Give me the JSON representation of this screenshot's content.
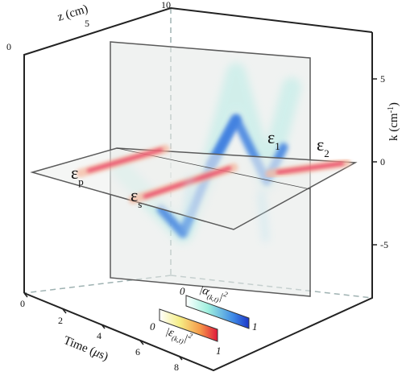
{
  "axes": {
    "z": {
      "label": "z (cm)",
      "ticks": [
        "0",
        "5",
        "10"
      ]
    },
    "k": {
      "label": "k (cm",
      "label_sup": "-1",
      "label_close": ")",
      "ticks": [
        "5",
        "0",
        "-5"
      ]
    },
    "time": {
      "label_main": "Time (",
      "label_mu": "μ",
      "label_s": "s)",
      "ticks": [
        "0",
        "2",
        "4",
        "6",
        "8"
      ]
    }
  },
  "labels": {
    "ep": {
      "main": "ε",
      "sub": "p"
    },
    "es": {
      "main": "ε",
      "sub": "s"
    },
    "e1": {
      "main": "ε",
      "sub": "1"
    },
    "e2": {
      "main": "ε",
      "sub": "2"
    }
  },
  "colorbars": [
    {
      "name": "alpha",
      "min": "0",
      "max": "1",
      "symbol": "α",
      "sub": "(k,t)",
      "power": "2",
      "colors": [
        "#ffffff",
        "#9ff0de",
        "#3f8ae6",
        "#1c36c8"
      ]
    },
    {
      "name": "epsilon",
      "min": "0",
      "max": "1",
      "symbol": "ε",
      "sub": "(k,t)",
      "power": "2",
      "colors": [
        "#ffffff",
        "#f5ee85",
        "#f59a4a",
        "#e0163a"
      ]
    }
  ],
  "colors": {
    "pulse_red": "#e8305a",
    "pulse_blue": "#3d7ee0",
    "box": "#222222",
    "dashed": "#9fb2b2"
  }
}
